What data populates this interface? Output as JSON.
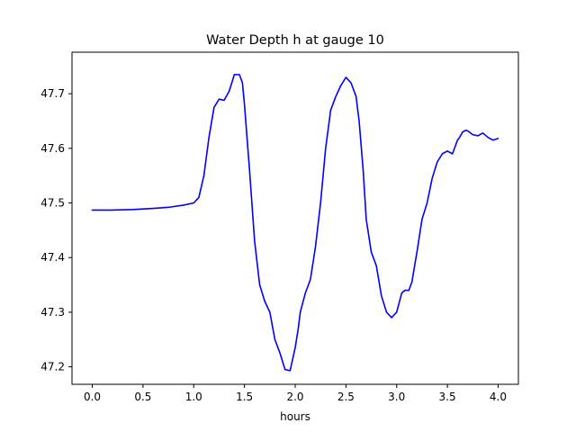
{
  "chart_data": {
    "type": "line",
    "title": "Water Depth h at gauge 10",
    "xlabel": "hours",
    "ylabel": "",
    "xlim": [
      -0.2,
      4.2
    ],
    "ylim": [
      47.168,
      47.776
    ],
    "xticks": [
      0.0,
      0.5,
      1.0,
      1.5,
      2.0,
      2.5,
      3.0,
      3.5,
      4.0
    ],
    "xtick_labels": [
      "0.0",
      "0.5",
      "1.0",
      "1.5",
      "2.0",
      "2.5",
      "3.0",
      "3.5",
      "4.0"
    ],
    "yticks": [
      47.2,
      47.3,
      47.4,
      47.5,
      47.6,
      47.7
    ],
    "ytick_labels": [
      "47.2",
      "47.3",
      "47.4",
      "47.5",
      "47.6",
      "47.7"
    ],
    "grid": false,
    "series": [
      {
        "name": "",
        "color": "#0000ff",
        "x": [
          0.0,
          0.2,
          0.4,
          0.6,
          0.75,
          0.9,
          1.0,
          1.05,
          1.1,
          1.15,
          1.2,
          1.25,
          1.3,
          1.35,
          1.4,
          1.45,
          1.48,
          1.5,
          1.55,
          1.6,
          1.65,
          1.7,
          1.75,
          1.78,
          1.8,
          1.85,
          1.9,
          1.95,
          2.0,
          2.03,
          2.05,
          2.1,
          2.15,
          2.2,
          2.25,
          2.3,
          2.35,
          2.4,
          2.45,
          2.5,
          2.55,
          2.6,
          2.63,
          2.67,
          2.7,
          2.75,
          2.8,
          2.85,
          2.9,
          2.95,
          3.0,
          3.05,
          3.08,
          3.12,
          3.15,
          3.2,
          3.25,
          3.3,
          3.35,
          3.4,
          3.45,
          3.5,
          3.55,
          3.6,
          3.62,
          3.65,
          3.68,
          3.7,
          3.75,
          3.8,
          3.85,
          3.9,
          3.95,
          4.0
        ],
        "y": [
          47.487,
          47.487,
          47.488,
          47.49,
          47.492,
          47.496,
          47.5,
          47.51,
          47.55,
          47.62,
          47.675,
          47.69,
          47.688,
          47.705,
          47.735,
          47.735,
          47.72,
          47.68,
          47.56,
          47.43,
          47.35,
          47.32,
          47.3,
          47.27,
          47.25,
          47.225,
          47.195,
          47.193,
          47.235,
          47.27,
          47.3,
          47.335,
          47.36,
          47.42,
          47.5,
          47.6,
          47.67,
          47.695,
          47.715,
          47.73,
          47.72,
          47.695,
          47.65,
          47.56,
          47.47,
          47.41,
          47.385,
          47.33,
          47.3,
          47.29,
          47.3,
          47.335,
          47.34,
          47.34,
          47.355,
          47.41,
          47.47,
          47.5,
          47.545,
          47.575,
          47.59,
          47.595,
          47.59,
          47.615,
          47.62,
          47.63,
          47.633,
          47.632,
          47.625,
          47.623,
          47.628,
          47.62,
          47.615,
          47.618
        ]
      }
    ]
  }
}
